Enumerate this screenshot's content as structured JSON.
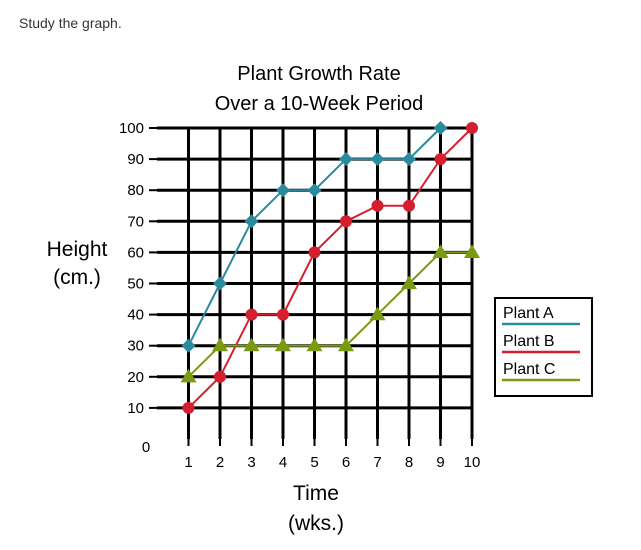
{
  "prompt": "Study the graph.",
  "chart_data": {
    "type": "line",
    "title": [
      "Plant Growth Rate",
      "Over a 10-Week Period"
    ],
    "ylabel": [
      "Height",
      "(cm.)"
    ],
    "xlabel": [
      "Time",
      "(wks.)"
    ],
    "x": [
      1,
      2,
      3,
      4,
      5,
      6,
      7,
      8,
      9,
      10
    ],
    "xlim": [
      0,
      10
    ],
    "ylim": [
      0,
      100
    ],
    "x_ticks": [
      "1",
      "2",
      "3",
      "4",
      "5",
      "6",
      "7",
      "8",
      "9",
      "10"
    ],
    "y_ticks": [
      "10",
      "20",
      "30",
      "40",
      "50",
      "60",
      "70",
      "80",
      "90",
      "100"
    ],
    "origin_label": "0",
    "grid": true,
    "legend_position": "right",
    "series": [
      {
        "name": "Plant A",
        "color": "#2a8a9e",
        "marker": "diamond",
        "x": [
          1,
          2,
          3,
          4,
          5,
          6,
          7,
          8,
          9
        ],
        "values": [
          30,
          50,
          70,
          80,
          80,
          90,
          90,
          90,
          100
        ]
      },
      {
        "name": "Plant B",
        "color": "#d61f2e",
        "marker": "circle",
        "x": [
          1,
          2,
          3,
          4,
          5,
          6,
          7,
          8,
          9,
          10
        ],
        "values": [
          10,
          20,
          40,
          40,
          60,
          70,
          75,
          75,
          90,
          100
        ]
      },
      {
        "name": "Plant C",
        "color": "#7a9a12",
        "marker": "triangle",
        "x": [
          1,
          2,
          3,
          4,
          5,
          6,
          7,
          8,
          9,
          10
        ],
        "values": [
          20,
          30,
          30,
          30,
          30,
          30,
          40,
          50,
          60,
          60
        ]
      }
    ]
  }
}
